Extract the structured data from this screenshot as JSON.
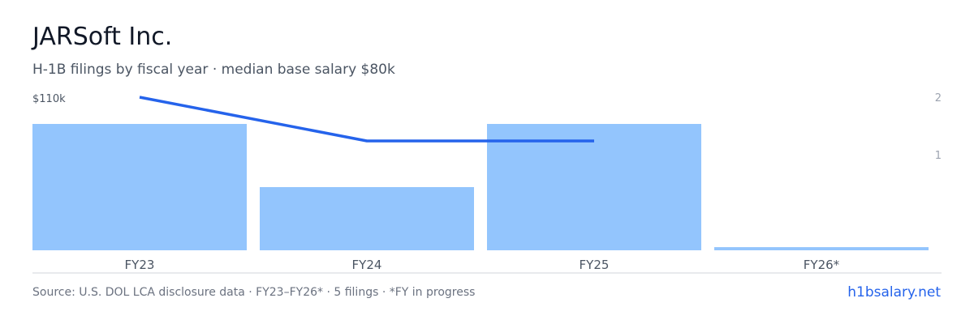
{
  "header": {
    "title": "JARSoft Inc.",
    "subtitle": "H-1B filings by fiscal year · median base salary $80k"
  },
  "footer": {
    "source": "Source: U.S. DOL LCA disclosure data · FY23–FY26* · 5 filings · *FY in progress",
    "brand": "h1bsalary.net"
  },
  "colors": {
    "bar": "#93c5fd",
    "line": "#2563eb",
    "axis": "#d1d5db",
    "tick": "#9ca3af",
    "category": "#4b5563"
  },
  "chart_data": {
    "type": "bar",
    "categories": [
      "FY23",
      "FY24",
      "FY25",
      "FY26*"
    ],
    "series": [
      {
        "type": "bar",
        "axis": "right",
        "values": [
          2,
          1,
          2,
          0.05
        ]
      },
      {
        "type": "line",
        "axis": "left",
        "values": [
          110,
          90,
          90,
          null
        ]
      }
    ],
    "left_axis": {
      "tick_label": "$110k",
      "tick_value": 110,
      "range": [
        40,
        110
      ]
    },
    "right_axis": {
      "ticks": [
        "2",
        "1"
      ],
      "range": [
        0,
        2
      ]
    },
    "grid": false,
    "legend": "none"
  }
}
